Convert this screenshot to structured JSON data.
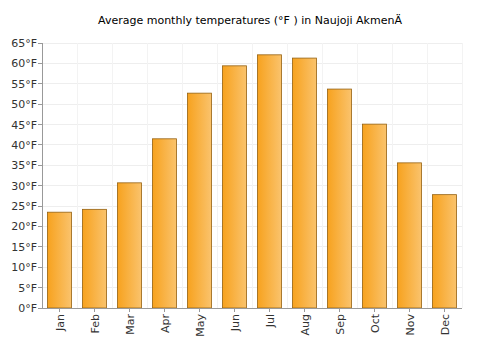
{
  "chart_data": {
    "type": "bar",
    "title": "Average monthly temperatures (°F ) in Naujoji AkmenÄ",
    "categories": [
      "Jan",
      "Feb",
      "Mar",
      "Apr",
      "May",
      "Jun",
      "Jul",
      "Aug",
      "Sep",
      "Oct",
      "Nov",
      "Dec"
    ],
    "values": [
      23.5,
      24.2,
      30.7,
      41.5,
      52.7,
      59.4,
      62.1,
      61.3,
      53.7,
      45.1,
      35.6,
      27.8
    ],
    "color": "#f7a21e",
    "ylim": [
      0,
      65
    ],
    "yticks": [
      {
        "value": 0,
        "label": "0°F"
      },
      {
        "value": 5,
        "label": "5°F"
      },
      {
        "value": 10,
        "label": "10°F"
      },
      {
        "value": 15,
        "label": "15°F"
      },
      {
        "value": 20,
        "label": "20°F"
      },
      {
        "value": 25,
        "label": "25°F"
      },
      {
        "value": 30,
        "label": "30°F"
      },
      {
        "value": 35,
        "label": "35°F"
      },
      {
        "value": 40,
        "label": "40°F"
      },
      {
        "value": 45,
        "label": "45°F"
      },
      {
        "value": 50,
        "label": "50°F"
      },
      {
        "value": 55,
        "label": "55°F"
      },
      {
        "value": 60,
        "label": "60°F"
      },
      {
        "value": 65,
        "label": "65°F"
      }
    ],
    "grid": true
  }
}
